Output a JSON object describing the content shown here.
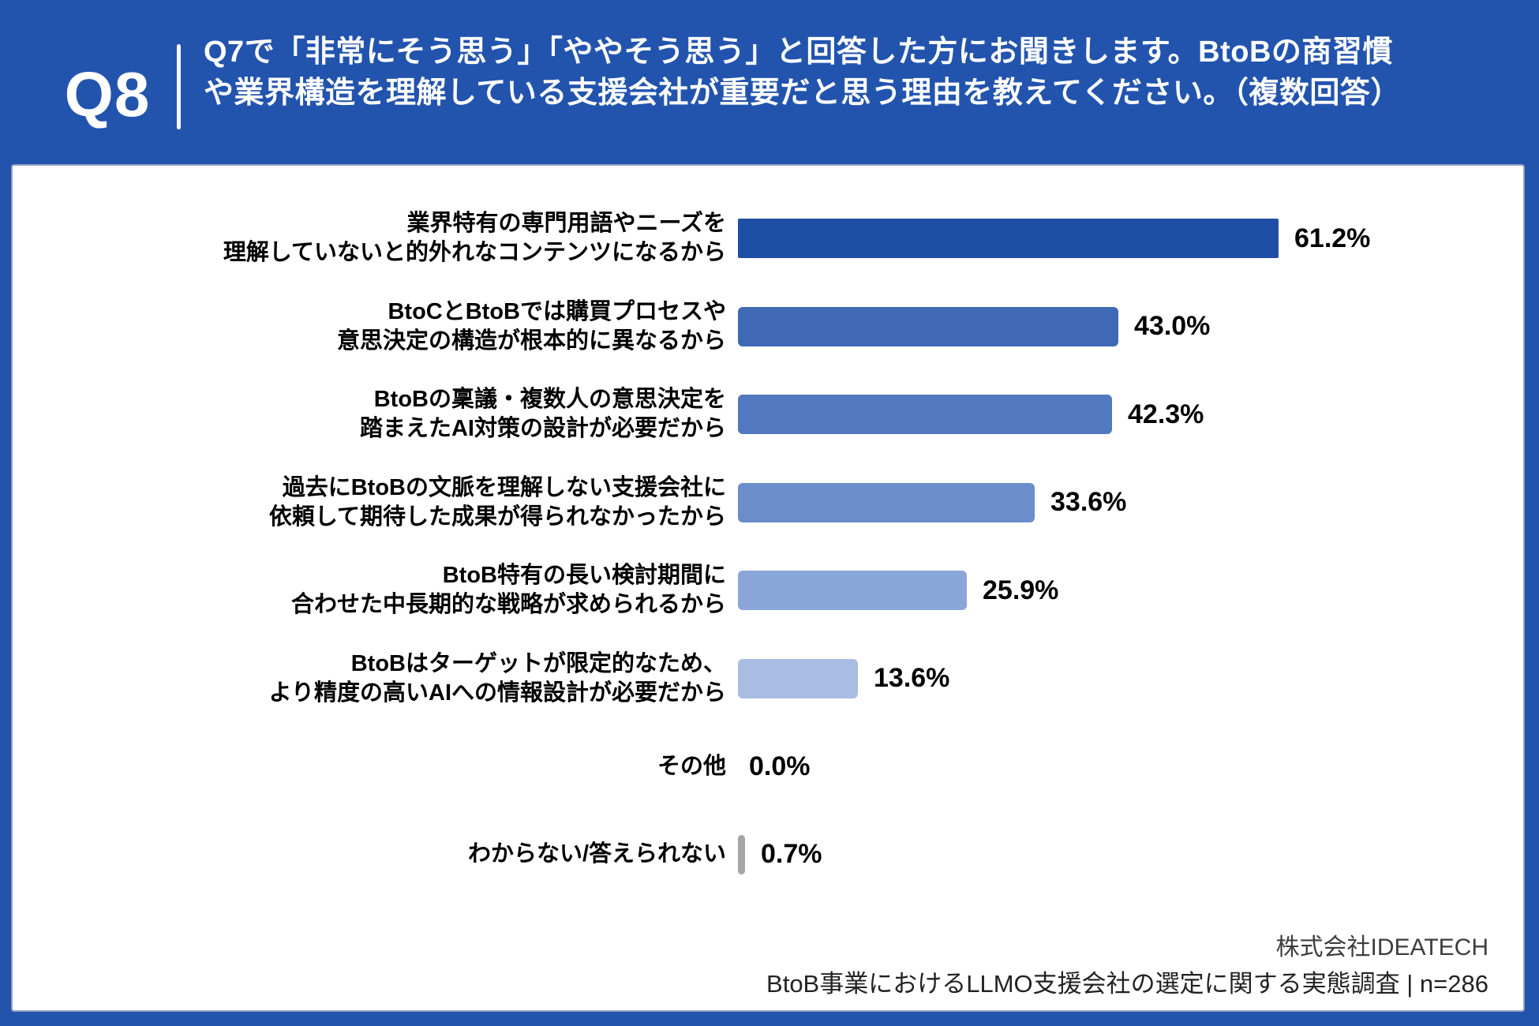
{
  "header": {
    "question_number": "Q8",
    "question_text": "Q7で「非常にそう思う」「ややそう思う」と回答した方にお聞きします。BtoBの商習慣や業界構造を理解している支援会社が重要だと思う理由を教えてください。（複数回答）"
  },
  "chart_data": {
    "type": "bar",
    "orientation": "horizontal",
    "unit": "%",
    "xlim": [
      0,
      100
    ],
    "grid": false,
    "categories": [
      "業界特有の専門用語やニーズを\n理解していないと的外れなコンテンツになるから",
      "BtoCとBtoBでは購買プロセスや\n意思決定の構造が根本的に異なるから",
      "BtoBの稟議・複数人の意思決定を\n踏まえたAI対策の設計が必要だから",
      "過去にBtoBの文脈を理解しない支援会社に\n依頼して期待した成果が得られなかったから",
      "BtoB特有の長い検討期間に\n合わせた中長期的な戦略が求められるから",
      "BtoBはターゲットが限定的なため、\nより精度の高いAIへの情報設計が必要だから",
      "その他",
      "わからない/答えられない"
    ],
    "values": [
      61.2,
      43.0,
      42.3,
      33.6,
      25.9,
      13.6,
      0.0,
      0.7
    ],
    "value_labels": [
      "61.2%",
      "43.0%",
      "42.3%",
      "33.6%",
      "25.9%",
      "13.6%",
      "0.0%",
      "0.7%"
    ],
    "bar_colors": [
      "#1f4fa5",
      "#4069b5",
      "#5278bf",
      "#6b8ecb",
      "#8aa6d9",
      "#a9bde3",
      "none",
      "#a6a6a6"
    ]
  },
  "footer": {
    "company": "株式会社IDEATECH",
    "survey_title": "BtoB事業におけるLLMO支援会社の選定に関する実態調査 | n=286"
  },
  "theme": {
    "frame_blue": "#2254ae",
    "card_border": "#93a2bf",
    "text_on_blue": "#ffffff"
  }
}
